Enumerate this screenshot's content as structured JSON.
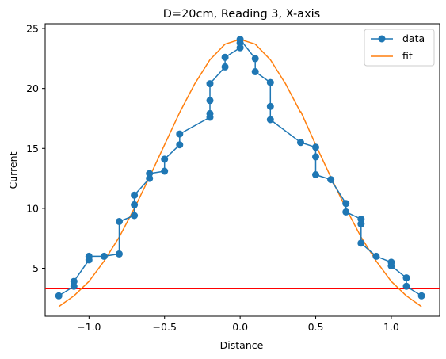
{
  "chart_data": {
    "type": "line",
    "title": "D=20cm, Reading 3, X-axis",
    "xlabel": "Distance",
    "ylabel": "Current",
    "xlim": [
      -1.29,
      1.32
    ],
    "ylim": [
      1.0,
      25.4
    ],
    "xticks": [
      -1.0,
      -0.5,
      0.0,
      0.5,
      1.0
    ],
    "xtick_labels": [
      "−1.0",
      "−0.5",
      "0.0",
      "0.5",
      "1.0"
    ],
    "yticks": [
      5,
      10,
      15,
      20,
      25
    ],
    "ytick_labels": [
      "5",
      "10",
      "15",
      "20",
      "25"
    ],
    "grid": false,
    "legend_position": "top-right",
    "series": [
      {
        "name": "data",
        "color": "#1f77b4",
        "marker": "circle",
        "x": [
          -1.2,
          -1.1,
          -1.1,
          -1.0,
          -1.0,
          -0.9,
          -0.8,
          -0.8,
          -0.7,
          -0.7,
          -0.7,
          -0.6,
          -0.6,
          -0.5,
          -0.5,
          -0.4,
          -0.4,
          -0.2,
          -0.2,
          -0.2,
          -0.2,
          -0.1,
          -0.1,
          0.0,
          0.0,
          0.0,
          0.1,
          0.1,
          0.2,
          0.2,
          0.2,
          0.4,
          0.5,
          0.5,
          0.5,
          0.6,
          0.7,
          0.7,
          0.8,
          0.8,
          0.8,
          0.9,
          1.0,
          1.0,
          1.1,
          1.1,
          1.2
        ],
        "y": [
          2.7,
          3.5,
          3.9,
          5.7,
          6.0,
          6.0,
          6.2,
          8.9,
          9.4,
          10.3,
          11.1,
          12.5,
          12.9,
          13.1,
          14.1,
          15.3,
          16.2,
          17.6,
          17.9,
          19.0,
          20.4,
          21.8,
          22.6,
          23.4,
          23.8,
          24.1,
          22.5,
          21.4,
          20.5,
          18.5,
          17.4,
          15.5,
          15.1,
          14.3,
          12.8,
          12.4,
          10.4,
          9.7,
          9.1,
          8.7,
          7.1,
          6.0,
          5.5,
          5.2,
          4.2,
          3.5,
          2.7
        ]
      },
      {
        "name": "fit",
        "color": "#ff7f0e",
        "marker": "none",
        "segments": [
          {
            "x": [
              -1.2,
              -1.1,
              -1.0,
              -0.9,
              -0.8,
              -0.7,
              -0.6,
              -0.5,
              -0.4,
              -0.3,
              -0.2,
              -0.1,
              0.0,
              0.1,
              0.2,
              0.3,
              0.4
            ],
            "y": [
              1.8,
              2.7,
              3.9,
              5.6,
              7.6,
              10.0,
              12.6,
              15.3,
              18.0,
              20.4,
              22.4,
              23.7,
              24.1,
              23.7,
              22.4,
              20.4,
              18.0
            ]
          },
          {
            "x": [
              0.4,
              0.5,
              0.6,
              0.7,
              0.8,
              0.9,
              1.0,
              1.1,
              1.2
            ],
            "y": [
              18.1,
              15.3,
              12.6,
              10.0,
              7.6,
              5.6,
              3.9,
              2.7,
              1.8
            ]
          }
        ]
      }
    ],
    "hline": {
      "y": 3.3,
      "color": "#ff0000"
    }
  }
}
